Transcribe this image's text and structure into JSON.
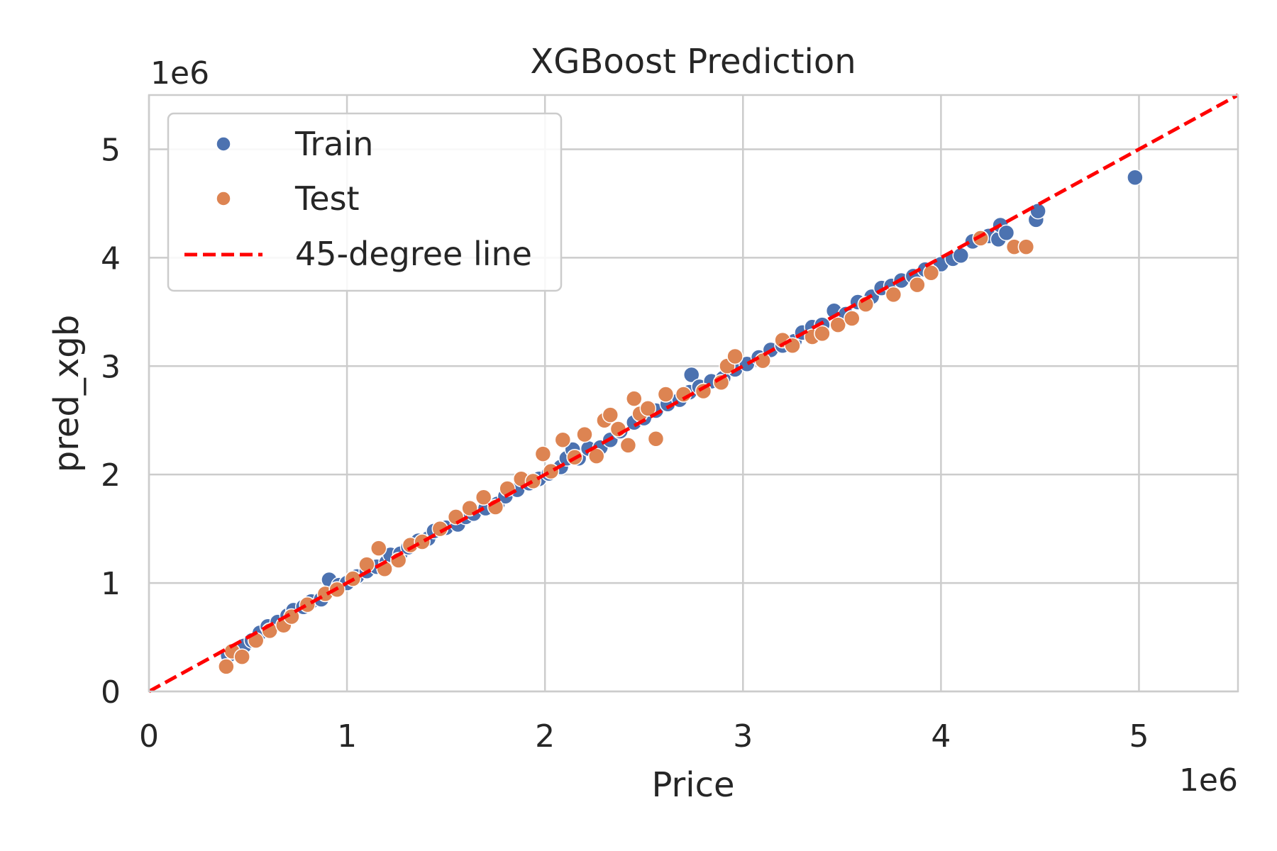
{
  "chart_data": {
    "type": "scatter",
    "title": "XGBoost Prediction",
    "xlabel": "Price",
    "ylabel": "pred_xgb",
    "x_offset_text": "1e6",
    "y_offset_text": "1e6",
    "xlim": [
      0,
      5500000
    ],
    "ylim": [
      0,
      5500000
    ],
    "xticks": [
      0,
      1000000,
      2000000,
      3000000,
      4000000,
      5000000
    ],
    "yticks": [
      0,
      1000000,
      2000000,
      3000000,
      4000000,
      5000000
    ],
    "xtick_labels": [
      "0",
      "1",
      "2",
      "3",
      "4",
      "5"
    ],
    "ytick_labels": [
      "0",
      "1",
      "2",
      "3",
      "4",
      "5"
    ],
    "grid": true,
    "legend_position": "top-left",
    "series": [
      {
        "name": "Train",
        "color": "#4c72b0",
        "points": [
          [
            400000,
            330000
          ],
          [
            450000,
            380000
          ],
          [
            480000,
            420000
          ],
          [
            520000,
            470000
          ],
          [
            560000,
            540000
          ],
          [
            600000,
            600000
          ],
          [
            650000,
            640000
          ],
          [
            700000,
            700000
          ],
          [
            730000,
            750000
          ],
          [
            780000,
            780000
          ],
          [
            820000,
            830000
          ],
          [
            870000,
            850000
          ],
          [
            900000,
            920000
          ],
          [
            910000,
            1030000
          ],
          [
            960000,
            980000
          ],
          [
            1000000,
            1000000
          ],
          [
            1050000,
            1060000
          ],
          [
            1100000,
            1110000
          ],
          [
            1150000,
            1150000
          ],
          [
            1200000,
            1190000
          ],
          [
            1220000,
            1260000
          ],
          [
            1270000,
            1270000
          ],
          [
            1310000,
            1330000
          ],
          [
            1360000,
            1390000
          ],
          [
            1410000,
            1410000
          ],
          [
            1440000,
            1480000
          ],
          [
            1500000,
            1510000
          ],
          [
            1560000,
            1540000
          ],
          [
            1600000,
            1610000
          ],
          [
            1640000,
            1640000
          ],
          [
            1700000,
            1690000
          ],
          [
            1760000,
            1730000
          ],
          [
            1800000,
            1800000
          ],
          [
            1860000,
            1860000
          ],
          [
            1920000,
            1920000
          ],
          [
            1970000,
            1960000
          ],
          [
            2020000,
            2010000
          ],
          [
            2080000,
            2070000
          ],
          [
            2110000,
            2150000
          ],
          [
            2140000,
            2230000
          ],
          [
            2170000,
            2150000
          ],
          [
            2220000,
            2240000
          ],
          [
            2280000,
            2250000
          ],
          [
            2330000,
            2320000
          ],
          [
            2380000,
            2400000
          ],
          [
            2450000,
            2480000
          ],
          [
            2500000,
            2520000
          ],
          [
            2560000,
            2590000
          ],
          [
            2620000,
            2650000
          ],
          [
            2680000,
            2690000
          ],
          [
            2730000,
            2760000
          ],
          [
            2740000,
            2920000
          ],
          [
            2780000,
            2810000
          ],
          [
            2840000,
            2860000
          ],
          [
            2900000,
            2890000
          ],
          [
            2960000,
            2970000
          ],
          [
            3020000,
            3020000
          ],
          [
            3080000,
            3080000
          ],
          [
            3140000,
            3150000
          ],
          [
            3200000,
            3190000
          ],
          [
            3260000,
            3230000
          ],
          [
            3300000,
            3310000
          ],
          [
            3350000,
            3360000
          ],
          [
            3400000,
            3380000
          ],
          [
            3460000,
            3510000
          ],
          [
            3520000,
            3480000
          ],
          [
            3580000,
            3590000
          ],
          [
            3650000,
            3640000
          ],
          [
            3700000,
            3720000
          ],
          [
            3750000,
            3740000
          ],
          [
            3800000,
            3790000
          ],
          [
            3860000,
            3830000
          ],
          [
            3920000,
            3890000
          ],
          [
            4000000,
            3940000
          ],
          [
            4060000,
            3990000
          ],
          [
            4100000,
            4020000
          ],
          [
            4160000,
            4150000
          ],
          [
            4240000,
            4200000
          ],
          [
            4290000,
            4170000
          ],
          [
            4300000,
            4300000
          ],
          [
            4330000,
            4230000
          ],
          [
            4480000,
            4350000
          ],
          [
            4490000,
            4430000
          ],
          [
            4980000,
            4740000
          ]
        ]
      },
      {
        "name": "Test",
        "color": "#dd8452",
        "points": [
          [
            390000,
            230000
          ],
          [
            420000,
            370000
          ],
          [
            470000,
            320000
          ],
          [
            540000,
            470000
          ],
          [
            610000,
            560000
          ],
          [
            680000,
            610000
          ],
          [
            720000,
            690000
          ],
          [
            800000,
            800000
          ],
          [
            890000,
            900000
          ],
          [
            950000,
            940000
          ],
          [
            1030000,
            1040000
          ],
          [
            1100000,
            1170000
          ],
          [
            1160000,
            1320000
          ],
          [
            1190000,
            1130000
          ],
          [
            1260000,
            1210000
          ],
          [
            1320000,
            1350000
          ],
          [
            1380000,
            1380000
          ],
          [
            1470000,
            1500000
          ],
          [
            1550000,
            1610000
          ],
          [
            1620000,
            1690000
          ],
          [
            1690000,
            1790000
          ],
          [
            1750000,
            1700000
          ],
          [
            1810000,
            1870000
          ],
          [
            1880000,
            1960000
          ],
          [
            1940000,
            1940000
          ],
          [
            1990000,
            2190000
          ],
          [
            2030000,
            2030000
          ],
          [
            2090000,
            2320000
          ],
          [
            2150000,
            2160000
          ],
          [
            2200000,
            2370000
          ],
          [
            2260000,
            2170000
          ],
          [
            2300000,
            2500000
          ],
          [
            2330000,
            2550000
          ],
          [
            2370000,
            2420000
          ],
          [
            2420000,
            2270000
          ],
          [
            2450000,
            2700000
          ],
          [
            2480000,
            2560000
          ],
          [
            2520000,
            2610000
          ],
          [
            2560000,
            2330000
          ],
          [
            2610000,
            2740000
          ],
          [
            2700000,
            2740000
          ],
          [
            2800000,
            2770000
          ],
          [
            2890000,
            2850000
          ],
          [
            2920000,
            3000000
          ],
          [
            2960000,
            3090000
          ],
          [
            3100000,
            3050000
          ],
          [
            3200000,
            3240000
          ],
          [
            3250000,
            3190000
          ],
          [
            3350000,
            3270000
          ],
          [
            3400000,
            3300000
          ],
          [
            3480000,
            3380000
          ],
          [
            3550000,
            3440000
          ],
          [
            3620000,
            3570000
          ],
          [
            3760000,
            3660000
          ],
          [
            3880000,
            3750000
          ],
          [
            3950000,
            3860000
          ],
          [
            4200000,
            4180000
          ],
          [
            4370000,
            4100000
          ],
          [
            4430000,
            4100000
          ]
        ]
      }
    ],
    "reference_line": {
      "name": "45-degree line",
      "color": "#ff0000",
      "x": [
        0,
        5500000
      ],
      "y": [
        0,
        5500000
      ]
    }
  }
}
